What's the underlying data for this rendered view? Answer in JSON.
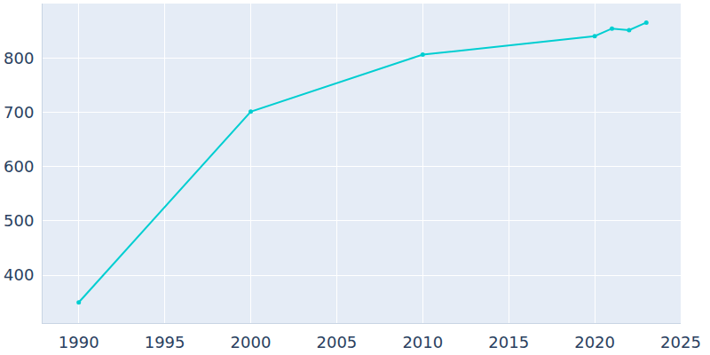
{
  "chart_data": {
    "type": "line",
    "x": [
      1990,
      2000,
      2010,
      2020,
      2021,
      2022,
      2023
    ],
    "values": [
      350,
      701,
      806,
      840,
      854,
      851,
      865
    ],
    "color": "#00ced1",
    "marker": "circle",
    "xlim": [
      1987.9,
      2025
    ],
    "xticks": [
      1990,
      1995,
      2000,
      2005,
      2010,
      2015,
      2020,
      2025
    ],
    "ylim": [
      312,
      900
    ],
    "yticks": [
      400,
      500,
      600,
      700,
      800
    ],
    "grid": true
  }
}
